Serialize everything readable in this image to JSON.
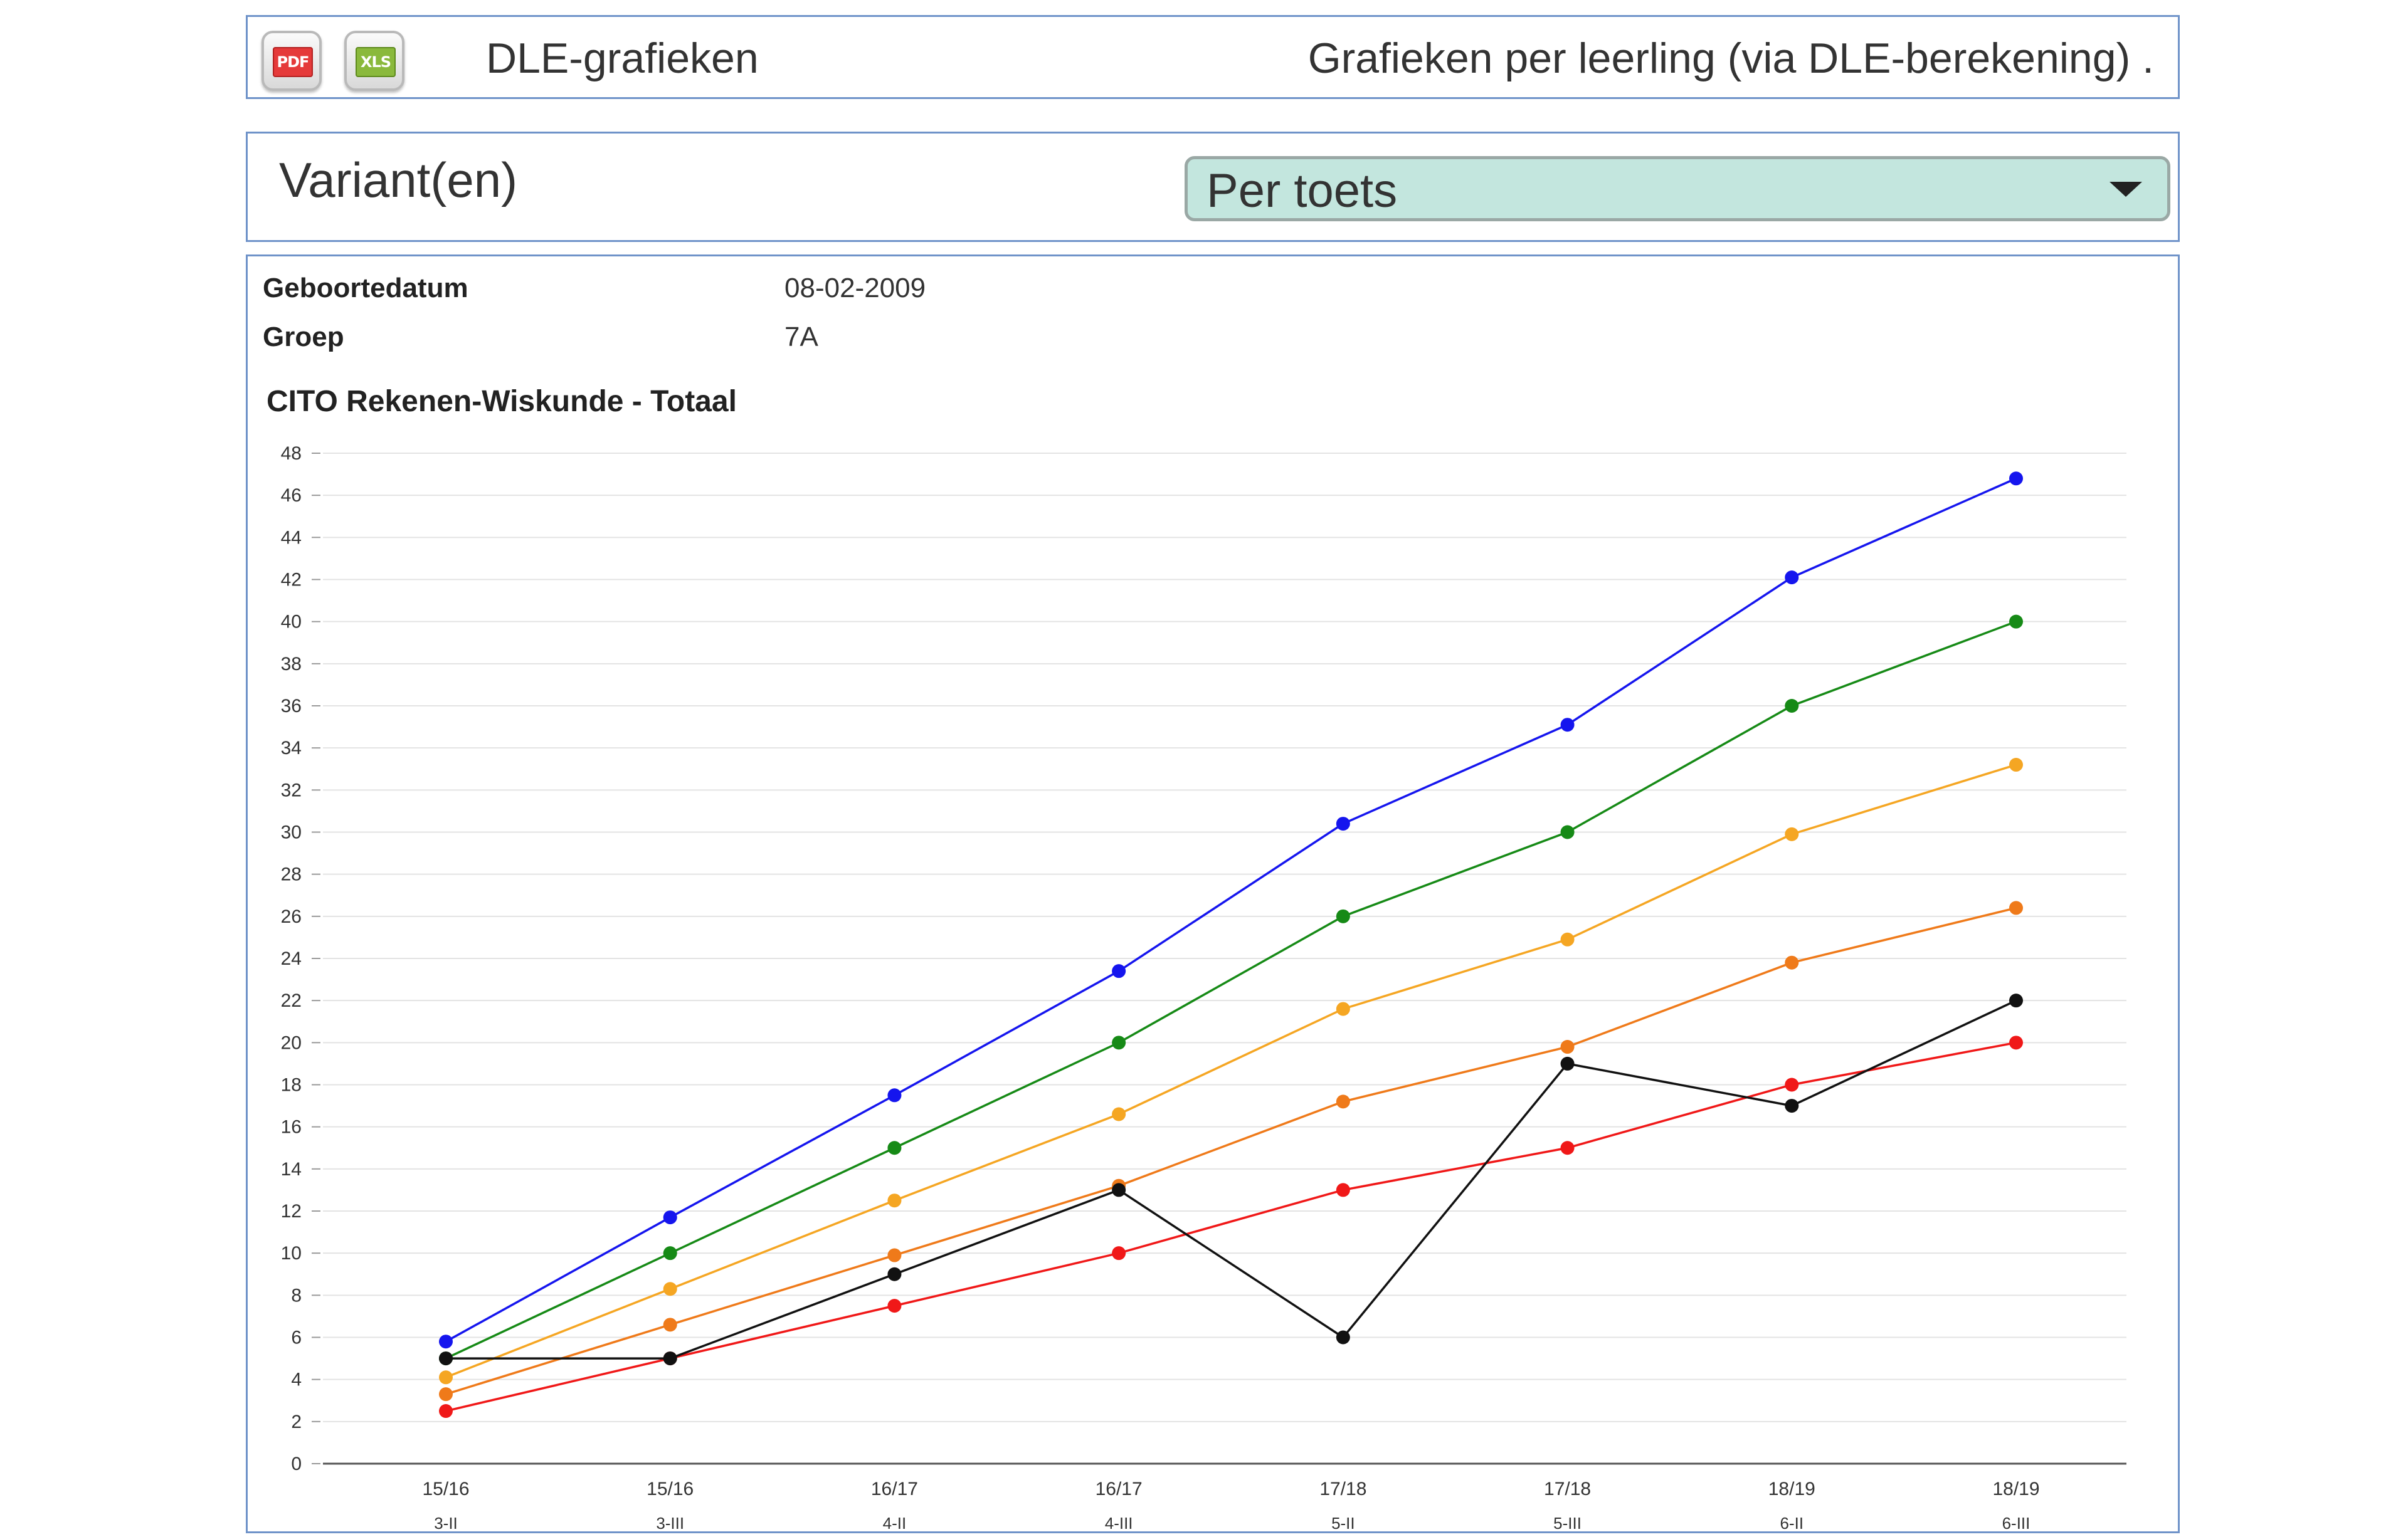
{
  "toolbar": {
    "pdf_icon": "pdf-file-icon",
    "pdf_label": "PDF",
    "xls_icon": "xls-file-icon",
    "xls_label": "XLS",
    "title": "DLE-grafieken",
    "description": "Grafieken per leerling (via DLE-berekening) ."
  },
  "variant": {
    "label": "Variant(en)",
    "selected": "Per toets",
    "caret_icon": "chevron-down-icon"
  },
  "student": {
    "birthdate_label": "Geboortedatum",
    "birthdate": "08-02-2009",
    "group_label": "Groep",
    "group": "7A"
  },
  "chart_data": {
    "type": "line",
    "title": "CITO Rekenen-Wiskunde - Totaal",
    "xlabel": "",
    "ylabel": "",
    "ylim": [
      0,
      48
    ],
    "ytick_step": 2,
    "grid": true,
    "legend": "none",
    "categories": [
      {
        "year": "15/16",
        "period": "3-II"
      },
      {
        "year": "15/16",
        "period": "3-III"
      },
      {
        "year": "16/17",
        "period": "4-II"
      },
      {
        "year": "16/17",
        "period": "4-III"
      },
      {
        "year": "17/18",
        "period": "5-II"
      },
      {
        "year": "17/18",
        "period": "5-III"
      },
      {
        "year": "18/19",
        "period": "6-II"
      },
      {
        "year": "18/19",
        "period": "6-III"
      }
    ],
    "series": [
      {
        "color": "#1515ee",
        "values": [
          5.8,
          11.7,
          17.5,
          23.4,
          30.4,
          35.1,
          42.1,
          46.8
        ]
      },
      {
        "color": "#168a16",
        "values": [
          5.0,
          10.0,
          15.0,
          20.0,
          26.0,
          30.0,
          36.0,
          40.0
        ]
      },
      {
        "color": "#f5a623",
        "values": [
          4.1,
          8.3,
          12.5,
          16.6,
          21.6,
          24.9,
          29.9,
          33.2
        ]
      },
      {
        "color": "#ef7a1a",
        "values": [
          3.3,
          6.6,
          9.9,
          13.2,
          17.2,
          19.8,
          23.8,
          26.4
        ]
      },
      {
        "color": "#f01818",
        "values": [
          2.5,
          5.0,
          7.5,
          10.0,
          13.0,
          15.0,
          18.0,
          20.0
        ]
      },
      {
        "color": "#111111",
        "values": [
          5.0,
          5.0,
          9.0,
          13.0,
          6.0,
          19.0,
          17.0,
          22.0
        ]
      }
    ]
  }
}
